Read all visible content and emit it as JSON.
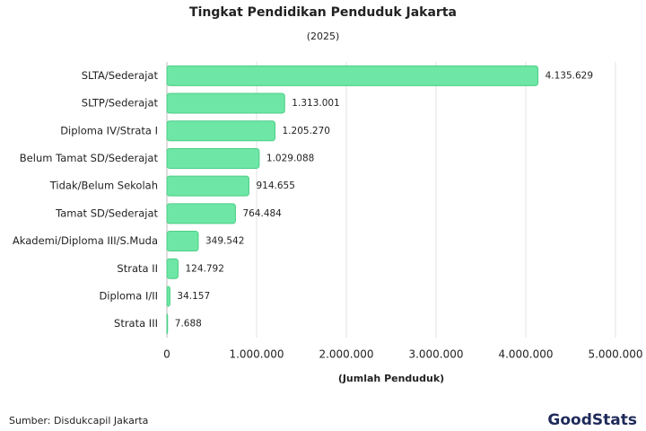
{
  "chart_data": {
    "type": "bar",
    "orientation": "horizontal",
    "title": "Tingkat Pendidikan Penduduk Jakarta",
    "subtitle": "(2025)",
    "x_label": "(Jumlah Penduduk)",
    "categories": [
      "SLTA/Sederajat",
      "SLTP/Sederajat",
      "Diploma IV/Strata I",
      "Belum Tamat SD/Sederajat",
      "Tidak/Belum Sekolah",
      "Tamat SD/Sederajat",
      "Akademi/Diploma III/S.Muda",
      "Strata II",
      "Diploma I/II",
      "Strata III"
    ],
    "values": [
      4135629,
      1313001,
      1205270,
      1029088,
      914655,
      764484,
      349542,
      124792,
      34157,
      7688
    ],
    "value_labels": [
      "4.135.629",
      "1.313.001",
      "1.205.270",
      "1.029.088",
      "914.655",
      "764.484",
      "349.542",
      "124.792",
      "34.157",
      "7.688"
    ],
    "color": "#6ee6a5",
    "xlim": [
      0,
      5000000
    ],
    "xticks": [
      0,
      {
        "value": 1000000,
        "label": "1.000.000"
      },
      {
        "value": 2000000,
        "label": "2.000.000"
      },
      {
        "value": 3000000,
        "label": "3.000.000"
      },
      {
        "value": 4000000,
        "label": "4.000.000"
      },
      {
        "value": 5000000,
        "label": "5.000.000"
      }
    ],
    "grid": true
  },
  "source": "Sumber: Disdukcapil Jakarta",
  "logo": "GoodStats"
}
